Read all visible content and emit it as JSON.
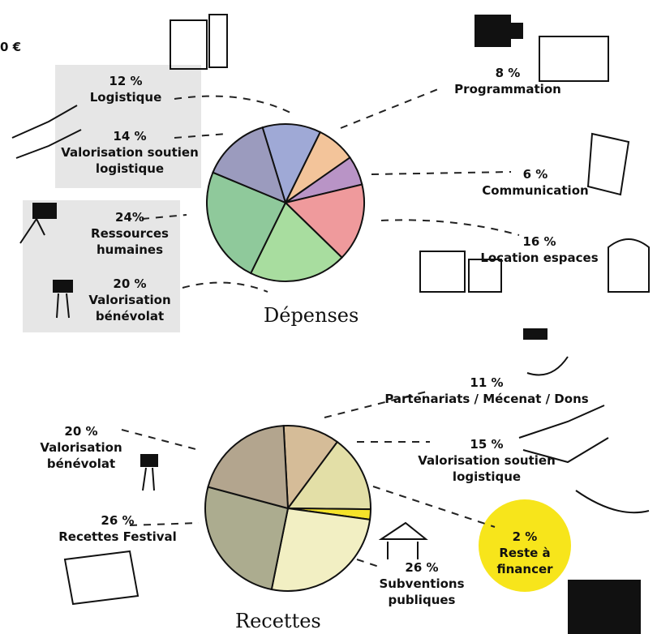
{
  "cropped_text": "0 €",
  "chart_data": [
    {
      "type": "pie",
      "title": "Dépenses",
      "categories": [
        "Logistique",
        "Programmation",
        "Communication",
        "Location espaces",
        "Valorisation bénévolat",
        "Ressources humaines",
        "Valorisation soutien logistique"
      ],
      "values": [
        12,
        8,
        6,
        16,
        20,
        24,
        14
      ],
      "value_labels": [
        "12 %",
        "8 %",
        "6 %",
        "16 %",
        "20 %",
        "24%",
        "14 %"
      ],
      "colors": [
        "#9fa9d6",
        "#f3c49a",
        "#b994c6",
        "#ef9a9c",
        "#a8dd9f",
        "#8fc99b",
        "#9b9bbe"
      ]
    },
    {
      "type": "pie",
      "title": "Recettes",
      "categories": [
        "Partenariats / Mécenat / Dons",
        "Valorisation soutien logistique",
        "Reste à financer",
        "Subventions publiques",
        "Recettes Festival",
        "Valorisation bénévolat"
      ],
      "values": [
        11,
        15,
        2,
        26,
        26,
        20
      ],
      "value_labels": [
        "11 %",
        "15 %",
        "2 %",
        "26 %",
        "26 %",
        "20 %"
      ],
      "colors": [
        "#d5bc98",
        "#e3dfa7",
        "#f5e32a",
        "#f2efc3",
        "#acac8f",
        "#b3a58e"
      ]
    }
  ]
}
